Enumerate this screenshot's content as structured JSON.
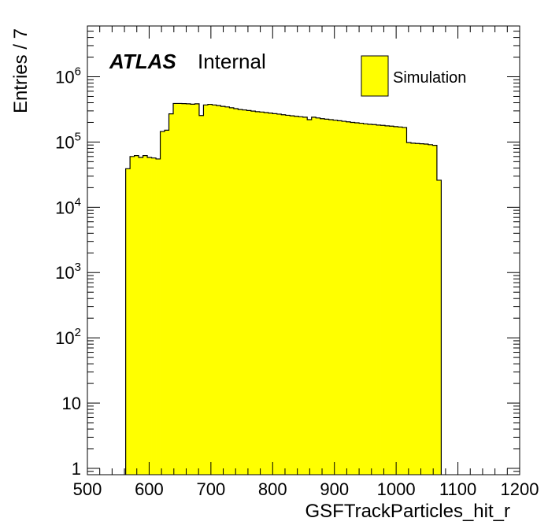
{
  "chart_data": {
    "type": "bar",
    "style": "histogram",
    "xlabel": "GSFTrackParticles_hit_r",
    "ylabel": "Entries / 7",
    "xlim": [
      500,
      1200
    ],
    "ylim": [
      0.8,
      6000000
    ],
    "yscale": "log",
    "x_ticks": [
      500,
      600,
      700,
      800,
      900,
      1000,
      1100,
      1200
    ],
    "y_ticks": [
      {
        "value": 1,
        "base": "1",
        "exp": ""
      },
      {
        "value": 10,
        "base": "10",
        "exp": ""
      },
      {
        "value": 100,
        "base": "10",
        "exp": "2"
      },
      {
        "value": 1000,
        "base": "10",
        "exp": "3"
      },
      {
        "value": 10000,
        "base": "10",
        "exp": "4"
      },
      {
        "value": 100000,
        "base": "10",
        "exp": "5"
      },
      {
        "value": 1000000,
        "base": "10",
        "exp": "6"
      }
    ],
    "bin_edges": [
      562,
      569,
      576,
      583,
      590,
      597,
      604,
      611,
      618,
      625,
      632,
      639,
      646,
      653,
      660,
      667,
      674,
      681,
      688,
      695,
      702,
      709,
      716,
      723,
      730,
      737,
      744,
      751,
      758,
      765,
      772,
      779,
      786,
      793,
      800,
      807,
      814,
      821,
      828,
      835,
      842,
      849,
      856,
      863,
      870,
      877,
      884,
      891,
      898,
      905,
      912,
      919,
      926,
      933,
      940,
      947,
      954,
      961,
      968,
      975,
      982,
      989,
      996,
      1003,
      1010,
      1017,
      1024,
      1031,
      1038,
      1045,
      1052,
      1059,
      1066,
      1073
    ],
    "values": [
      39000,
      60000,
      62000,
      58000,
      62000,
      58000,
      57000,
      55000,
      145000,
      152000,
      270000,
      390000,
      390000,
      388000,
      385000,
      380000,
      385000,
      255000,
      370000,
      378000,
      370000,
      362000,
      352000,
      345000,
      335000,
      325000,
      315000,
      310000,
      304000,
      298000,
      292000,
      288000,
      283000,
      278000,
      272000,
      268000,
      262000,
      257000,
      252000,
      248000,
      244000,
      240000,
      220000,
      240000,
      234000,
      228000,
      224000,
      220000,
      216000,
      212000,
      208000,
      204000,
      200000,
      197000,
      194000,
      190000,
      187000,
      185000,
      182000,
      180000,
      177000,
      175000,
      172000,
      170000,
      167000,
      98000,
      96000,
      95000,
      94000,
      93000,
      91000,
      89000,
      26000
    ],
    "series": [
      {
        "name": "Simulation",
        "color": "#ffff00"
      }
    ],
    "legend": {
      "position": "top-right"
    },
    "grid": false
  },
  "annotations": {
    "atlas": "ATLAS",
    "internal": "Internal"
  }
}
